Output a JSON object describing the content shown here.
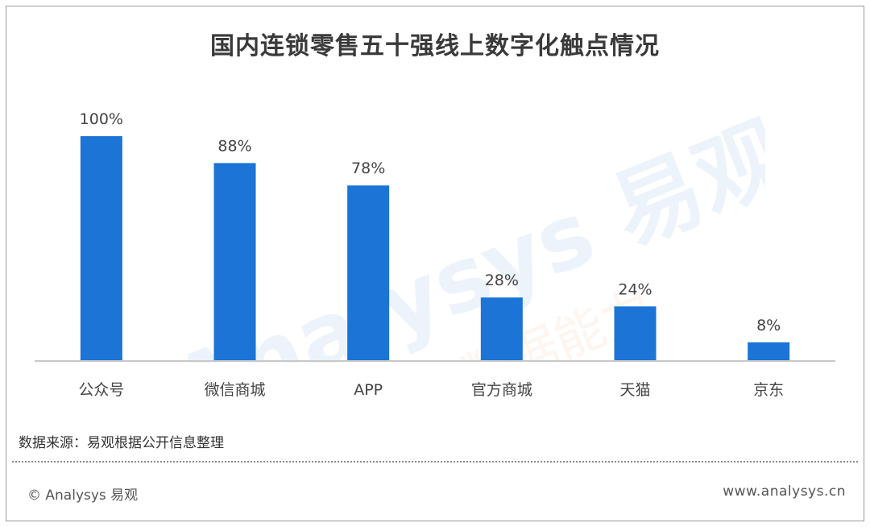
{
  "title": "国内连锁零售五十强线上数字化触点情况",
  "chart_data": {
    "type": "bar",
    "title": "国内连锁零售五十强线上数字化触点情况",
    "categories": [
      "公众号",
      "微信商城",
      "APP",
      "官方商城",
      "天猫",
      "京东"
    ],
    "values": [
      100,
      88,
      78,
      28,
      24,
      8
    ],
    "value_labels": [
      "100%",
      "88%",
      "78%",
      "28%",
      "24%",
      "8%"
    ],
    "unit": "%",
    "xlabel": "",
    "ylabel": "",
    "ylim": [
      0,
      100
    ],
    "grid": false,
    "bar_color": "#1b74d6"
  },
  "watermark": {
    "brand": "Analysys 易观",
    "slogan": "你要的数据能力"
  },
  "source_note": "数据来源：易观根据公开信息整理",
  "footer": {
    "copyright": "© Analysys 易观",
    "website": "www.analysys.cn"
  }
}
